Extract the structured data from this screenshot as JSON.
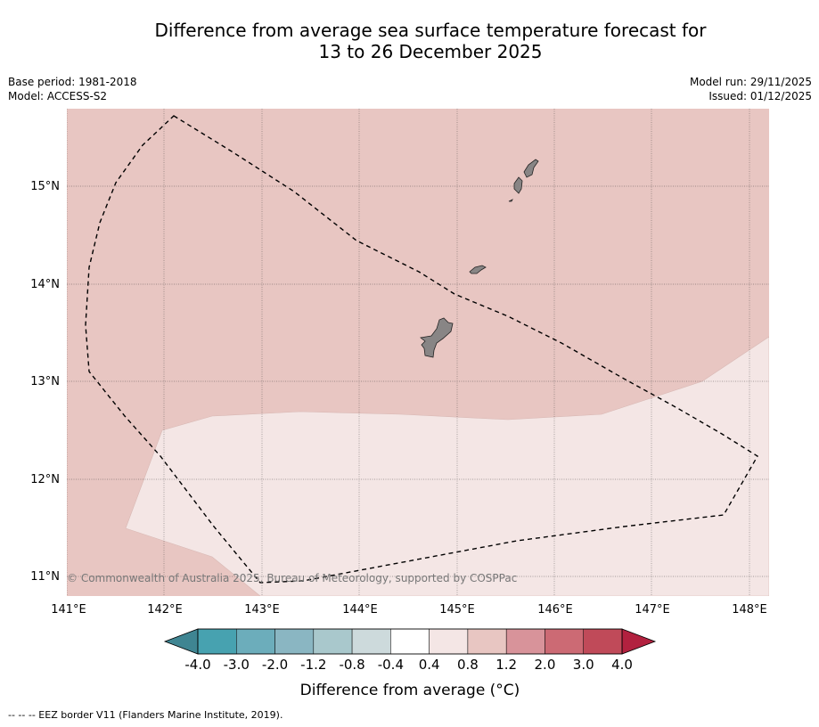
{
  "title": {
    "line1": "Difference from average sea surface temperature forecast for",
    "line2": "13 to 26 December 2025"
  },
  "meta_left": {
    "base_period": "Base period: 1981-2018",
    "model": "Model: ACCESS-S2"
  },
  "meta_right": {
    "model_run": "Model run: 29/11/2025",
    "issued": "Issued: 01/12/2025"
  },
  "map": {
    "lat_labels": [
      "15°N",
      "14°N",
      "13°N",
      "12°N",
      "11°N"
    ],
    "lon_labels": [
      "141°E",
      "142°E",
      "143°E",
      "144°E",
      "145°E",
      "146°E",
      "147°E",
      "148°E"
    ],
    "copyright": "© Commonwealth of Australia 2025, Bureau of Meteorology, supported by COSPPac",
    "colors": {
      "warm_0_8_1_2": "#e8c6c2",
      "warm_0_4_0_8": "#f4e6e5",
      "land": "#888585",
      "eez_line": "#000000"
    }
  },
  "colorbar": {
    "ticks": [
      "-4.0",
      "-3.0",
      "-2.0",
      "-1.2",
      "-0.8",
      "-0.4",
      "0.4",
      "0.8",
      "1.2",
      "2.0",
      "3.0",
      "4.0"
    ],
    "colors": [
      "#47a2b0",
      "#6cadbb",
      "#8ab6c2",
      "#a9c8cc",
      "#cddadc",
      "#ffffff",
      "#f4e6e5",
      "#e8c6c2",
      "#d8939a",
      "#cc6a74",
      "#c04a59"
    ],
    "under_color": "#3f8592",
    "over_color": "#b2213f",
    "label": "Difference from average (°C)"
  },
  "footnote": "--  --  -- EEZ border V11 (Flanders Marine Institute, 2019)."
}
